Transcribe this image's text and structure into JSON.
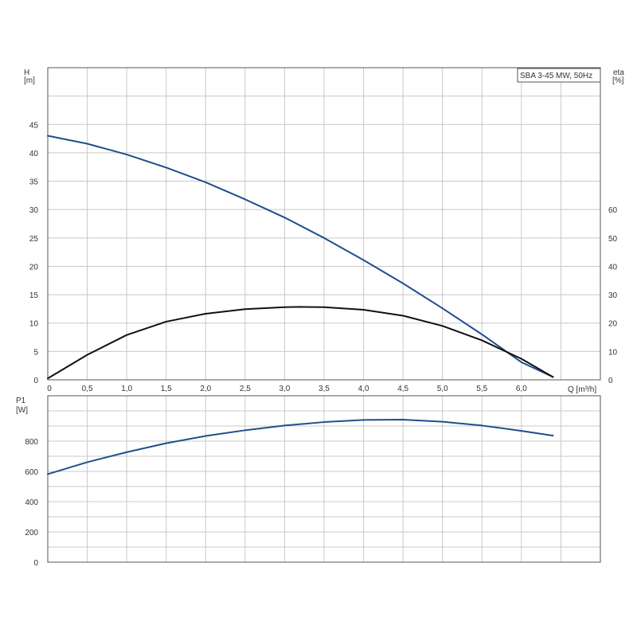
{
  "chart_data": [
    {
      "type": "line",
      "title": "SBA 3-45 MW, 50Hz",
      "xlabel": "Q [m³/h]",
      "x_ticks": [
        "0",
        "0,5",
        "1,0",
        "1,5",
        "2,0",
        "2,5",
        "3,0",
        "3,5",
        "4,0",
        "4,5",
        "5,0",
        "5,5",
        "6,0"
      ],
      "xlim": [
        0,
        7.0
      ],
      "ylabel_left": "H",
      "ylabel_left_unit": "[m]",
      "ylim_left": [
        0,
        55
      ],
      "y_ticks_left": [
        "0",
        "5",
        "10",
        "15",
        "20",
        "25",
        "30",
        "35",
        "40",
        "45"
      ],
      "ylabel_right": "eta",
      "ylabel_right_unit": "[%]",
      "ylim_right": [
        0,
        110
      ],
      "y_ticks_right": [
        "0",
        "10",
        "20",
        "30",
        "40",
        "50",
        "60"
      ],
      "grid": true,
      "series": [
        {
          "axis": "left",
          "color": "#1f4e8c",
          "x": [
            0,
            0.5,
            1.0,
            1.5,
            2.0,
            2.5,
            3.0,
            3.5,
            4.0,
            4.5,
            5.0,
            5.5,
            6.0,
            6.4
          ],
          "values": [
            43.0,
            41.6,
            39.7,
            37.4,
            34.8,
            31.8,
            28.6,
            25.0,
            21.1,
            17.0,
            12.6,
            8.0,
            3.1,
            0.5
          ]
        },
        {
          "axis": "right",
          "color": "#111111",
          "x": [
            0,
            0.5,
            1.0,
            1.5,
            2.0,
            2.5,
            3.0,
            3.2,
            3.5,
            4.0,
            4.5,
            5.0,
            5.5,
            6.0,
            6.4
          ],
          "values": [
            0.5,
            8.8,
            15.8,
            20.5,
            23.3,
            24.9,
            25.6,
            25.7,
            25.6,
            24.7,
            22.6,
            19.0,
            13.9,
            7.4,
            1.0
          ]
        }
      ]
    },
    {
      "type": "line",
      "ylabel": "P1",
      "ylabel_unit": "[W]",
      "ylim": [
        0,
        1100
      ],
      "y_ticks": [
        "0",
        "200",
        "400",
        "600",
        "800"
      ],
      "xlim": [
        0,
        7.0
      ],
      "grid": true,
      "series": [
        {
          "color": "#1f4e8c",
          "x": [
            0,
            0.5,
            1.0,
            1.5,
            2.0,
            2.5,
            3.0,
            3.5,
            4.0,
            4.5,
            5.0,
            5.5,
            6.0,
            6.4
          ],
          "values": [
            582,
            661,
            727,
            786,
            834,
            872,
            903,
            926,
            940,
            942,
            928,
            903,
            868,
            836
          ]
        }
      ]
    }
  ]
}
